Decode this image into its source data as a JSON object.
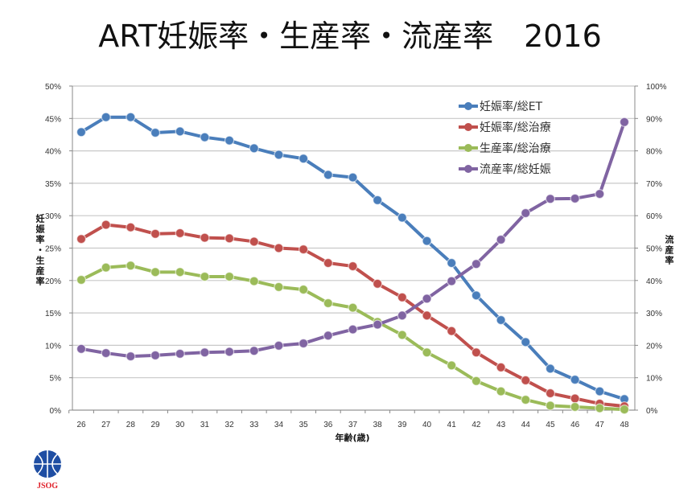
{
  "chart_data": {
    "type": "line",
    "title": "ART妊娠率・生産率・流産率　2016",
    "xlabel": "年齢(歳)",
    "ylabel_left": "妊娠率・生産率",
    "ylabel_right": "流産率",
    "x": [
      26,
      27,
      28,
      29,
      30,
      31,
      32,
      33,
      34,
      35,
      36,
      37,
      38,
      39,
      40,
      41,
      42,
      43,
      44,
      45,
      46,
      47,
      48
    ],
    "ylim_left": [
      0,
      50
    ],
    "ylim_right": [
      0,
      100
    ],
    "yticks_left": [
      "0%",
      "5%",
      "10%",
      "15%",
      "20%",
      "25%",
      "30%",
      "35%",
      "40%",
      "45%",
      "50%"
    ],
    "yticks_right": [
      "0%",
      "10%",
      "20%",
      "30%",
      "40%",
      "50%",
      "60%",
      "70%",
      "80%",
      "90%",
      "100%"
    ],
    "grid": true,
    "legend_position": "top-right",
    "series": [
      {
        "name": "妊娠率/総ET",
        "axis": "left",
        "color": "#4a7ebb",
        "values": [
          42.9,
          45.2,
          45.2,
          42.8,
          43.0,
          42.1,
          41.6,
          40.4,
          39.4,
          38.8,
          36.3,
          35.9,
          32.4,
          29.7,
          26.1,
          22.7,
          17.7,
          13.9,
          10.5,
          6.4,
          4.7,
          2.9,
          1.7
        ]
      },
      {
        "name": "妊娠率/総治療",
        "axis": "left",
        "color": "#c0504d",
        "values": [
          26.4,
          28.6,
          28.2,
          27.2,
          27.3,
          26.6,
          26.5,
          26.0,
          25.0,
          24.8,
          22.7,
          22.2,
          19.5,
          17.4,
          14.6,
          12.2,
          8.9,
          6.6,
          4.6,
          2.6,
          1.8,
          1.0,
          0.6
        ]
      },
      {
        "name": "生産率/総治療",
        "axis": "left",
        "color": "#9bbb59",
        "values": [
          20.1,
          22.0,
          22.3,
          21.3,
          21.3,
          20.6,
          20.6,
          19.9,
          19.0,
          18.6,
          16.5,
          15.8,
          13.6,
          11.6,
          8.9,
          6.9,
          4.5,
          2.9,
          1.6,
          0.7,
          0.5,
          0.3,
          0.1
        ]
      },
      {
        "name": "流産率/総妊娠",
        "axis": "right",
        "color": "#8064a2",
        "values": [
          18.9,
          17.6,
          16.6,
          16.9,
          17.4,
          17.8,
          18.0,
          18.3,
          19.9,
          20.6,
          23.0,
          24.9,
          26.4,
          29.2,
          34.4,
          39.8,
          45.1,
          52.6,
          60.8,
          65.2,
          65.3,
          66.7,
          88.9
        ]
      }
    ]
  },
  "logo": {
    "text": "JSOG",
    "color": "#1f4ea3",
    "text_color": "#e0202a"
  }
}
